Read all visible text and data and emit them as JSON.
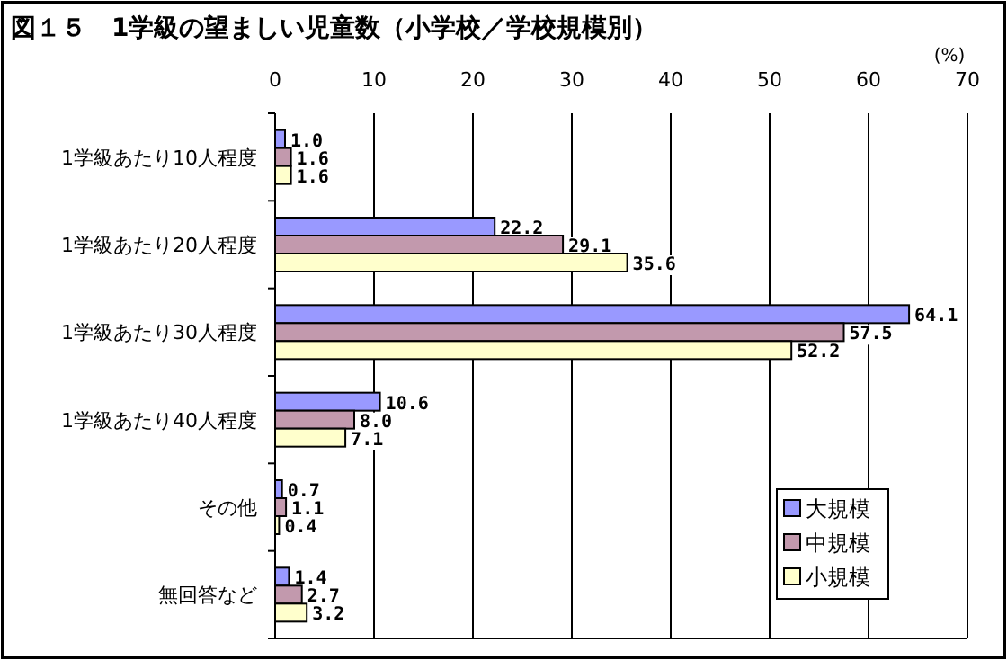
{
  "chart_data": {
    "type": "bar",
    "orientation": "horizontal",
    "title": "図１５　1学級の望ましい児童数（小学校／学校規模別）",
    "xlabel": "(%)",
    "categories": [
      "1学級あたり10人程度",
      "1学級あたり20人程度",
      "1学級あたり30人程度",
      "1学級あたり40人程度",
      "その他",
      "無回答など"
    ],
    "series": [
      {
        "name": "大規模",
        "color": "#9999ff",
        "values": [
          1.0,
          22.2,
          64.1,
          10.6,
          0.7,
          1.4
        ],
        "value_labels": [
          "1.0",
          "22.2",
          "64.1",
          "10.6",
          "0.7",
          "1.4"
        ]
      },
      {
        "name": "中規模",
        "color": "#c299ad",
        "values": [
          1.6,
          29.1,
          57.5,
          8.0,
          1.1,
          2.7
        ],
        "value_labels": [
          "1.6",
          "29.1",
          "57.5",
          "8.0",
          "1.1",
          "2.7"
        ]
      },
      {
        "name": "小規模",
        "color": "#ffffcc",
        "values": [
          1.6,
          35.6,
          52.2,
          7.1,
          0.4,
          3.2
        ],
        "value_labels": [
          "1.6",
          "35.6",
          "52.2",
          "7.1",
          "0.4",
          "3.2"
        ]
      }
    ],
    "xlim": [
      0,
      70
    ],
    "xticks": [
      0,
      10,
      20,
      30,
      40,
      50,
      60,
      70
    ],
    "grid": "x",
    "legend": "bottom right"
  }
}
